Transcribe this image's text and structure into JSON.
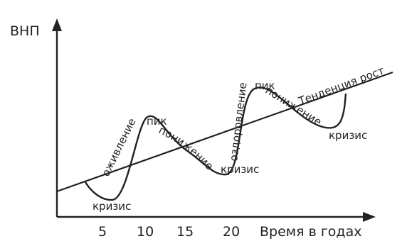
{
  "axes": {
    "y_label": "ВНП",
    "x_label": "Время в годах",
    "x_ticks": [
      "5",
      "10",
      "15",
      "20"
    ]
  },
  "trend_label": "Тенденция роста",
  "phase_labels": {
    "crisis_1": "кризис",
    "recovery_1": "оживление",
    "peak_1": "пик",
    "decline_1": "понижение",
    "crisis_2": "кризис",
    "recovery_2": "оздоровление",
    "peak_2": "пик",
    "decline_2": "понижение",
    "crisis_3": "кризис"
  }
}
